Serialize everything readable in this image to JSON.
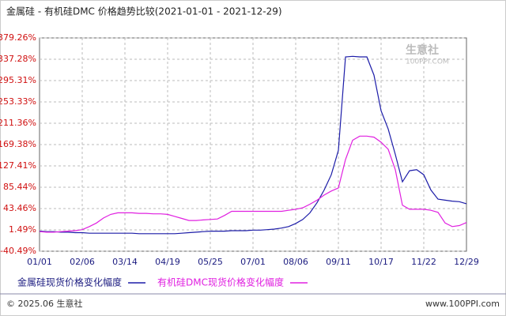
{
  "chart_data": {
    "type": "line",
    "title": "金属硅 - 有机硅DMC 价格趋势比较(2021-01-01 - 2021-12-29)",
    "categories": [
      "01/01",
      null,
      null,
      null,
      null,
      null,
      "02/06",
      null,
      null,
      null,
      null,
      null,
      "03/14",
      null,
      null,
      null,
      null,
      null,
      "04/19",
      null,
      null,
      null,
      null,
      null,
      "05/25",
      null,
      null,
      null,
      null,
      null,
      "07/01",
      null,
      null,
      null,
      null,
      null,
      "08/06",
      null,
      null,
      null,
      null,
      null,
      "09/11",
      null,
      null,
      null,
      null,
      null,
      "10/17",
      null,
      null,
      null,
      null,
      null,
      "11/22",
      null,
      null,
      null,
      null,
      null,
      "12/29"
    ],
    "series": [
      {
        "name": "金属硅现货价格变化幅度",
        "color": "#1c1ca8",
        "values": [
          -1,
          -2,
          -2,
          -3,
          -3,
          -4,
          -4,
          -5,
          -5,
          -5,
          -5,
          -5,
          -5,
          -5,
          -6,
          -6,
          -6,
          -6,
          -6,
          -6,
          -5,
          -4,
          -3,
          -2,
          -1,
          -1,
          -1,
          0,
          0,
          0,
          1,
          1,
          2,
          3,
          5,
          8,
          14,
          22,
          35,
          55,
          80,
          110,
          158,
          342,
          343,
          342,
          342,
          306,
          236,
          200,
          150,
          96,
          118,
          120,
          110,
          80,
          62,
          60,
          58,
          57,
          53
        ]
      },
      {
        "name": "有机硅DMC现货价格变化幅度",
        "color": "#e020e0",
        "values": [
          -2,
          -3,
          -3,
          -2,
          -1,
          0,
          2,
          8,
          15,
          25,
          32,
          35,
          35,
          35,
          34,
          34,
          33,
          33,
          32,
          28,
          24,
          20,
          20,
          21,
          22,
          23,
          30,
          38,
          38,
          38,
          38,
          38,
          38,
          38,
          38,
          40,
          42,
          45,
          52,
          60,
          70,
          78,
          84,
          140,
          178,
          186,
          186,
          184,
          174,
          160,
          120,
          50,
          42,
          42,
          42,
          40,
          36,
          15,
          8,
          10,
          16
        ]
      }
    ],
    "ylim": [
      -40.49,
      379.26
    ],
    "yticks": [
      {
        "value": -40.49,
        "label": "-40.49%"
      },
      {
        "value": 1.49,
        "label": "1.49%"
      },
      {
        "value": 43.46,
        "label": "43.46%"
      },
      {
        "value": 85.44,
        "label": "85.44%"
      },
      {
        "value": 127.41,
        "label": "127.41%"
      },
      {
        "value": 169.38,
        "label": "169.38%"
      },
      {
        "value": 211.36,
        "label": "211.36%"
      },
      {
        "value": 253.33,
        "label": "253.33%"
      },
      {
        "value": 295.31,
        "label": "295.31%"
      },
      {
        "value": 337.28,
        "label": "337.28%"
      },
      {
        "value": 379.26,
        "label": "379.26%"
      }
    ],
    "grid": true,
    "watermark": {
      "name": "生意社",
      "site": "100PPI.COM"
    },
    "footer": {
      "copyright": "© 2025.06 生意社",
      "site": "www.100PPI.com"
    }
  }
}
